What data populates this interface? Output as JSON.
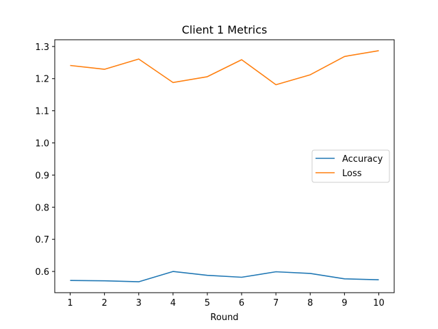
{
  "chart_data": {
    "type": "line",
    "title": "Client 1 Metrics",
    "xlabel": "Round",
    "ylabel": "",
    "x": [
      1,
      2,
      3,
      4,
      5,
      6,
      7,
      8,
      9,
      10
    ],
    "xticks": [
      "1",
      "2",
      "3",
      "4",
      "5",
      "6",
      "7",
      "8",
      "9",
      "10"
    ],
    "yticks": [
      "0.6",
      "0.7",
      "0.8",
      "0.9",
      "1.0",
      "1.1",
      "1.2",
      "1.3"
    ],
    "xlim": [
      0.55,
      10.45
    ],
    "ylim": [
      0.534,
      1.321
    ],
    "grid": false,
    "legend_position": "center-right",
    "series": [
      {
        "name": "Accuracy",
        "color": "#1f77b4",
        "values": [
          0.572,
          0.571,
          0.568,
          0.6,
          0.588,
          0.582,
          0.599,
          0.594,
          0.577,
          0.574
        ]
      },
      {
        "name": "Loss",
        "color": "#ff7f0e",
        "values": [
          1.241,
          1.229,
          1.261,
          1.188,
          1.206,
          1.259,
          1.181,
          1.212,
          1.269,
          1.287
        ]
      }
    ]
  }
}
